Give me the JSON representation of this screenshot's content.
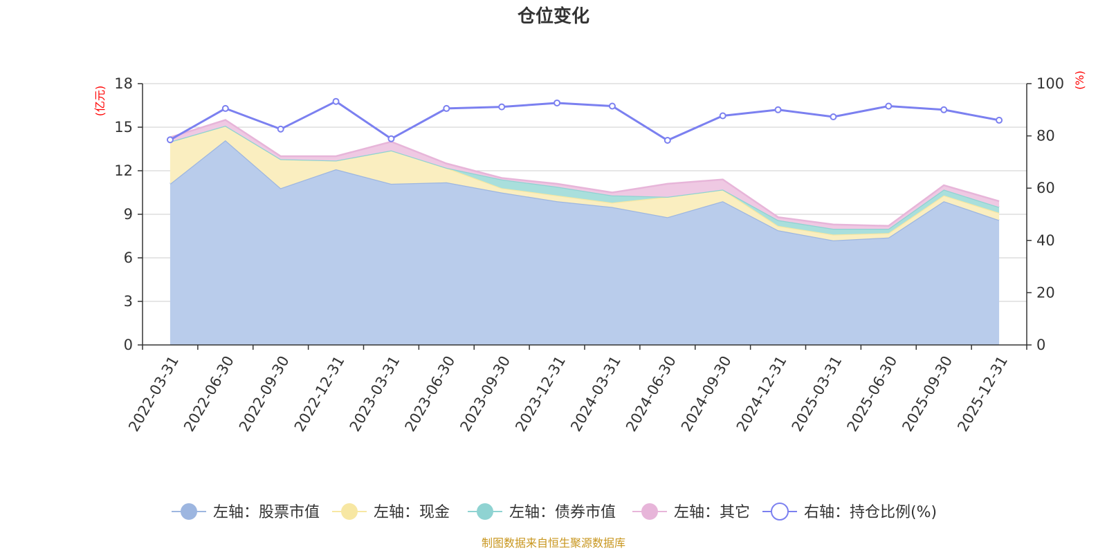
{
  "chart_data": {
    "type": "area",
    "title": "仓位变化",
    "left_axis": {
      "unit": "(亿元)",
      "ylim": [
        0,
        18
      ],
      "ticks": [
        0,
        3,
        6,
        9,
        12,
        15,
        18
      ]
    },
    "right_axis": {
      "unit": "(%)",
      "ylim": [
        0,
        100
      ],
      "ticks": [
        0,
        20,
        40,
        60,
        80,
        100
      ]
    },
    "categories": [
      "2022-03-31",
      "2022-06-30",
      "2022-09-30",
      "2022-12-31",
      "2023-03-31",
      "2023-06-30",
      "2023-09-30",
      "2023-12-31",
      "2024-03-31",
      "2024-06-30",
      "2024-09-30",
      "2024-12-31",
      "2025-03-31",
      "2025-06-30",
      "2025-09-30",
      "2025-12-31"
    ],
    "series": [
      {
        "name": "左轴：股票市值",
        "axis": "left",
        "kind": "stacked-area",
        "color": "#9db6e0",
        "fill": "#b9cceb",
        "values": [
          11.1,
          14.1,
          10.8,
          12.1,
          11.1,
          11.2,
          10.5,
          9.9,
          9.5,
          8.8,
          9.9,
          7.9,
          7.2,
          7.4,
          9.9,
          8.6
        ]
      },
      {
        "name": "左轴：现金",
        "axis": "left",
        "kind": "stacked-area",
        "color": "#f7e7a3",
        "fill": "#faeec0",
        "values": [
          2.9,
          1.0,
          2.0,
          0.6,
          2.3,
          1.0,
          0.3,
          0.4,
          0.3,
          1.4,
          0.8,
          0.3,
          0.4,
          0.3,
          0.4,
          0.5
        ]
      },
      {
        "name": "左轴：债券市值",
        "axis": "left",
        "kind": "stacked-area",
        "color": "#8fd3d2",
        "fill": "#a9dfdc",
        "values": [
          0,
          0,
          0,
          0,
          0,
          0,
          0.6,
          0.6,
          0.5,
          0,
          0,
          0.4,
          0.4,
          0.3,
          0.4,
          0.4
        ]
      },
      {
        "name": "左轴：其它",
        "axis": "left",
        "kind": "stacked-area",
        "color": "#e7b5d9",
        "fill": "#efc9e3",
        "values": [
          0.3,
          0.4,
          0.2,
          0.3,
          0.6,
          0.3,
          0.1,
          0.2,
          0.2,
          0.9,
          0.7,
          0.2,
          0.3,
          0.2,
          0.3,
          0.4
        ]
      },
      {
        "name": "右轴：持仓比例(%)",
        "axis": "right",
        "kind": "line",
        "color": "#7b80f0",
        "values": [
          78.5,
          90.5,
          82.6,
          93.2,
          78.9,
          90.5,
          91.1,
          92.6,
          91.4,
          78.3,
          87.7,
          90.0,
          87.3,
          91.4,
          90.0,
          86.0
        ]
      }
    ],
    "legend_position": "bottom-center",
    "grid": true
  },
  "footer": {
    "source": "制图数据来自恒生聚源数据库"
  }
}
